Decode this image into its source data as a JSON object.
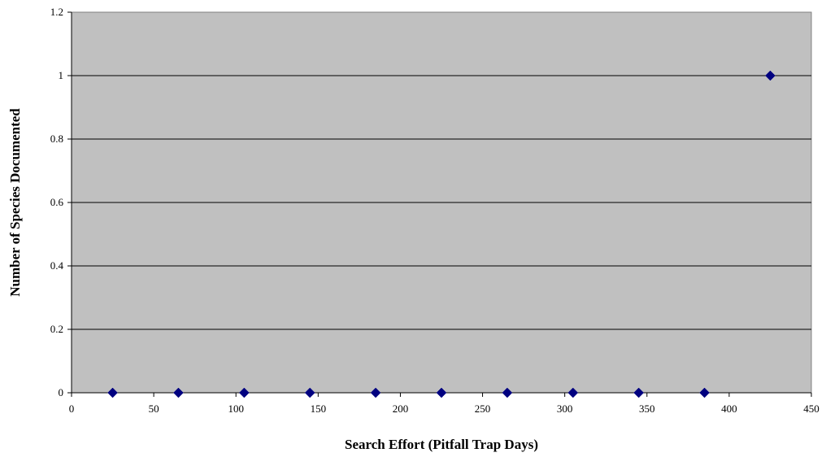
{
  "chart_data": {
    "type": "scatter",
    "title": "",
    "xlabel": "Search Effort  (Pitfall Trap Days)",
    "ylabel": "Number of Species Documented",
    "xlim": [
      0,
      450
    ],
    "ylim": [
      0,
      1.2
    ],
    "x_ticks": [
      "0",
      "50",
      "100",
      "150",
      "200",
      "250",
      "300",
      "350",
      "400",
      "450"
    ],
    "y_ticks": [
      "0",
      "0.2",
      "0.4",
      "0.6",
      "0.8",
      "1",
      "1.2"
    ],
    "grid": "horizontal",
    "legend": "none",
    "series": [
      {
        "x": [
          25,
          65,
          105,
          145,
          185,
          225,
          265,
          305,
          345,
          385,
          425
        ],
        "y": [
          0,
          0,
          0,
          0,
          0,
          0,
          0,
          0,
          0,
          0,
          1
        ]
      }
    ],
    "colors": {
      "plot_background": "#c0c0c0",
      "marker": "#000080",
      "gridline": "#000000"
    }
  }
}
